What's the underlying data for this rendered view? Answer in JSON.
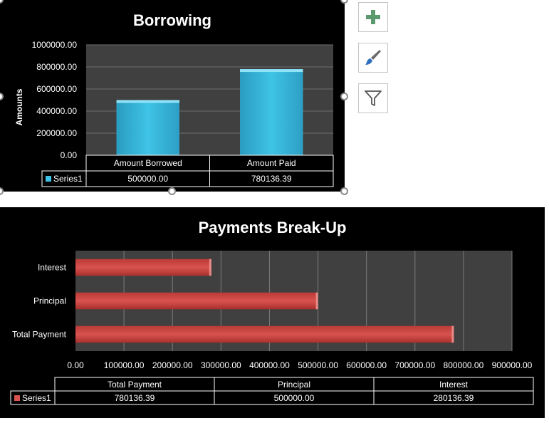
{
  "chart_data": [
    {
      "type": "bar",
      "orientation": "vertical",
      "title": "Borrowing",
      "ylabel": "Amounts",
      "categories": [
        "Amount Borrowed",
        "Amount Paid"
      ],
      "series": [
        {
          "name": "Series1",
          "values": [
            500000.0,
            780136.39
          ]
        }
      ],
      "value_labels": [
        "500000.00",
        "780136.39"
      ],
      "ylim": [
        0,
        1000000
      ],
      "y_ticks": [
        "0.00",
        "200000.00",
        "400000.00",
        "600000.00",
        "800000.00",
        "1000000.00"
      ],
      "grid": true,
      "legend": "data-table",
      "series_color": "#3ec3e6",
      "background": "#404040"
    },
    {
      "type": "bar",
      "orientation": "horizontal",
      "title": "Payments Break-Up",
      "categories": [
        "Total Payment",
        "Principal",
        "Interest"
      ],
      "series": [
        {
          "name": "Series1",
          "values": [
            780136.39,
            500000.0,
            280136.39
          ]
        }
      ],
      "value_labels": [
        "780136.39",
        "500000.00",
        "280136.39"
      ],
      "xlim": [
        0,
        900000
      ],
      "x_ticks": [
        "0.00",
        "100000.00",
        "200000.00",
        "300000.00",
        "400000.00",
        "500000.00",
        "600000.00",
        "700000.00",
        "800000.00",
        "900000.00"
      ],
      "grid": true,
      "legend": "data-table",
      "series_color": "#d9534f",
      "background": "#404040"
    }
  ],
  "side_buttons": [
    {
      "name": "add-chart-element",
      "icon": "plus-icon"
    },
    {
      "name": "chart-styles",
      "icon": "paintbrush-icon"
    },
    {
      "name": "chart-filters",
      "icon": "funnel-icon"
    }
  ]
}
